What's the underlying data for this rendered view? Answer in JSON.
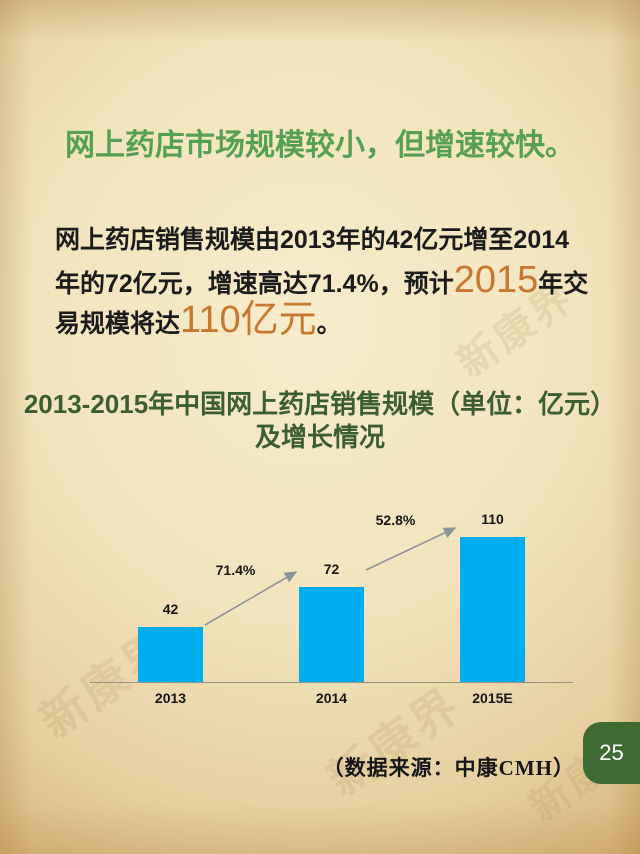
{
  "slide": {
    "title": "网上药店市场规模较小，但增速较快。",
    "body": {
      "line1": "网上药店销售规模由2013年的42亿元增至2014",
      "line2_prefix": "年的72亿元，增速高达71.4%，预计",
      "year_highlight": "2015",
      "line2_suffix": "年交",
      "line3_prefix": "易规模将达",
      "value_highlight": "110亿元",
      "line3_suffix": "。",
      "full_text": "网上药店销售规模由2013年的42亿元增至2014年的72亿元，增速高达71.4%，预计2015年交易规模将达110亿元。"
    },
    "source_note": "（数据来源：中康CMH）",
    "page_number": "25",
    "watermark_text": "新康界"
  },
  "chart_data": {
    "type": "bar",
    "title_line1": "2013-2015年中国网上药店销售规模（单位：亿元）",
    "title_line2": "及增长情况",
    "title": "2013-2015年中国网上药店销售规模（单位：亿元）及增长情况",
    "categories": [
      "2013",
      "2014",
      "2015E"
    ],
    "values": [
      42,
      72,
      110
    ],
    "value_labels": [
      "42",
      "72",
      "110"
    ],
    "growth_labels": [
      "71.4%",
      "52.8%"
    ],
    "unit": "亿元",
    "ylim": [
      0,
      120
    ],
    "grid": "off",
    "legend": "none",
    "bar_color": "#00AEEF",
    "arrow_color": "#8D9499",
    "axis_color": "#979288"
  },
  "colors": {
    "title_green": "#55A055",
    "chart_title_green": "#3B5E31",
    "highlight_orange": "#C8772E",
    "bar_cyan": "#00AEEF",
    "badge_green": "#3E6B34",
    "background_paper": "#F2E4BD"
  }
}
